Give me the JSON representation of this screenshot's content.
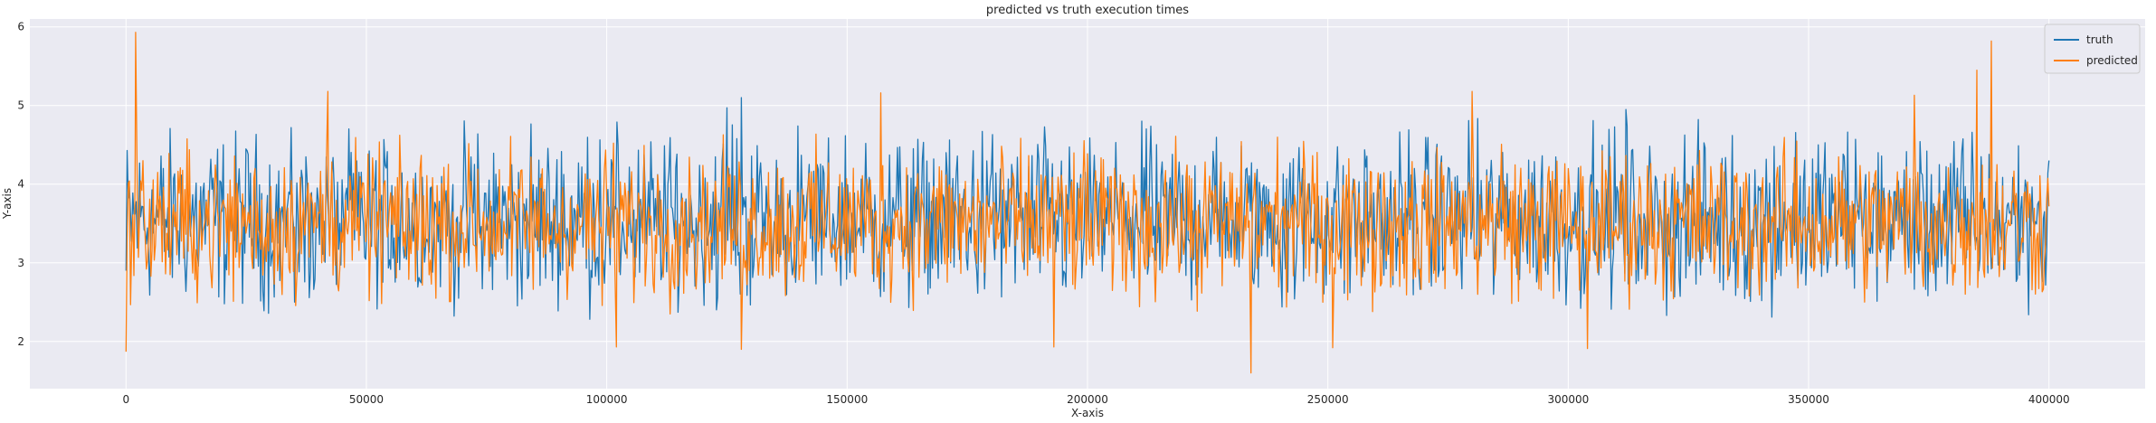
{
  "chart_data": {
    "type": "line",
    "title": "predicted vs truth execution times",
    "xlabel": "X-axis",
    "ylabel": "Y-axis",
    "xlim": [
      -20000,
      420000
    ],
    "ylim": [
      1.4,
      6.1
    ],
    "xticks": [
      0,
      50000,
      100000,
      150000,
      200000,
      250000,
      300000,
      350000,
      400000
    ],
    "xtick_labels": [
      "0",
      "50000",
      "100000",
      "150000",
      "200000",
      "250000",
      "300000",
      "350000",
      "400000"
    ],
    "yticks": [
      2,
      3,
      4,
      5,
      6
    ],
    "ytick_labels": [
      "2",
      "3",
      "4",
      "5",
      "6"
    ],
    "grid": true,
    "legend_position": "top-right",
    "x_range": [
      0,
      400000
    ],
    "series": [
      {
        "name": "truth",
        "color": "#1f77b4",
        "typical_range": [
          2.4,
          4.7
        ],
        "notable_points": [
          {
            "x": 128000,
            "y": 5.1
          },
          {
            "x": 125000,
            "y": 4.97
          },
          {
            "x": 312000,
            "y": 4.95
          },
          {
            "x": 400000,
            "y": 4.3
          },
          {
            "x": 0,
            "y": 2.9
          }
        ]
      },
      {
        "name": "predicted",
        "color": "#ff7f0e",
        "typical_range": [
          2.5,
          4.5
        ],
        "notable_points": [
          {
            "x": 2000,
            "y": 5.93
          },
          {
            "x": 388000,
            "y": 5.82
          },
          {
            "x": 42000,
            "y": 5.18
          },
          {
            "x": 280000,
            "y": 5.18
          },
          {
            "x": 157000,
            "y": 5.16
          },
          {
            "x": 372000,
            "y": 5.13
          },
          {
            "x": 385000,
            "y": 5.45
          },
          {
            "x": 234000,
            "y": 1.6
          },
          {
            "x": 0,
            "y": 1.87
          },
          {
            "x": 128000,
            "y": 1.9
          },
          {
            "x": 102000,
            "y": 1.93
          },
          {
            "x": 193000,
            "y": 1.93
          },
          {
            "x": 251000,
            "y": 1.92
          },
          {
            "x": 304000,
            "y": 1.91
          }
        ]
      }
    ]
  }
}
